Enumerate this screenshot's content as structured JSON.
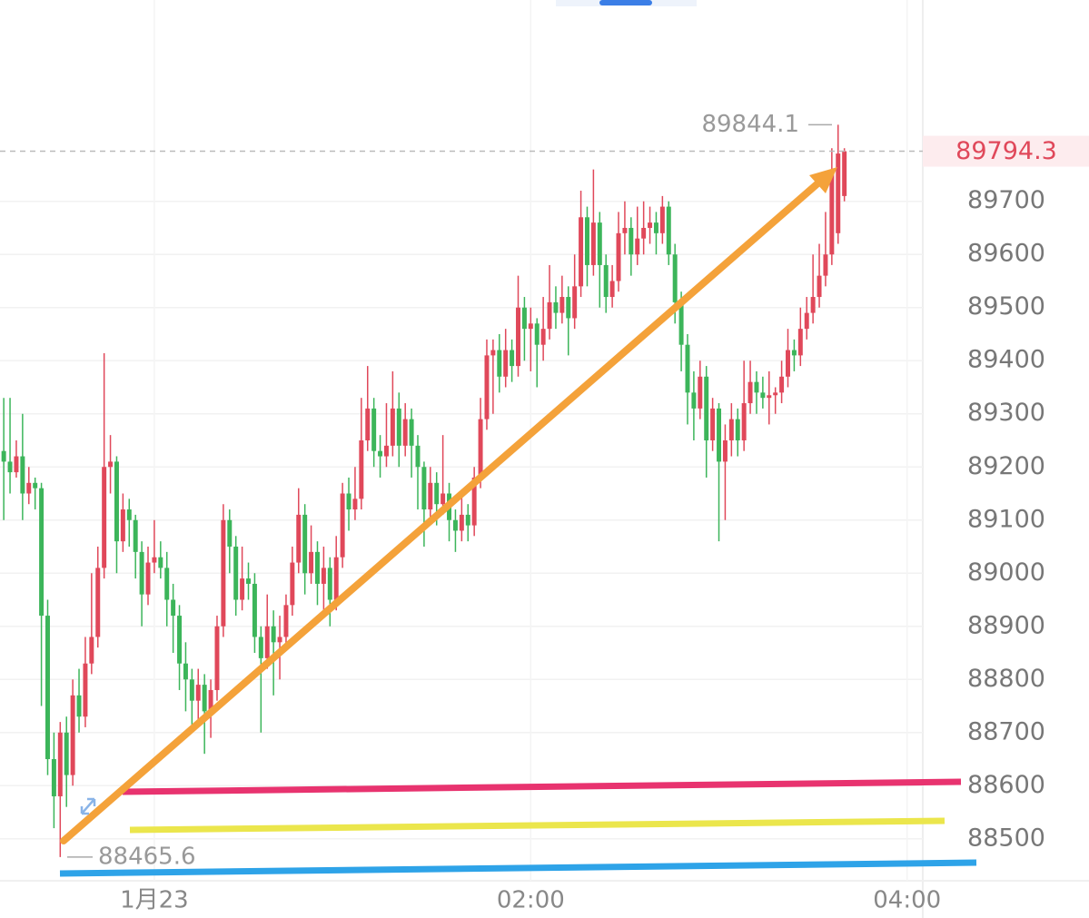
{
  "chart_data": {
    "type": "candlestick",
    "up_color": "#e0485a",
    "down_color": "#3cb55a",
    "xlim": [
      -0.6,
      146.5
    ],
    "xticks": [
      {
        "value": 24,
        "label": "1月23"
      },
      {
        "value": 84,
        "label": "02:00"
      },
      {
        "value": 144,
        "label": "04:00"
      }
    ],
    "ylim": [
      88421,
      90079
    ],
    "yticks": [
      88500,
      88600,
      88700,
      88800,
      88900,
      89000,
      89100,
      89200,
      89300,
      89400,
      89500,
      89600,
      89700
    ],
    "grid": true,
    "high_label": 89844.1,
    "low_label": 88465.6,
    "last_price": 89794.3,
    "candles": [
      [
        89230,
        89330,
        89100,
        89210
      ],
      [
        89210,
        89330,
        89150,
        89190
      ],
      [
        89190,
        89250,
        89180,
        89220
      ],
      [
        89220,
        89300,
        89100,
        89150
      ],
      [
        89150,
        89200,
        89130,
        89170
      ],
      [
        89170,
        89180,
        89120,
        89160
      ],
      [
        89160,
        89170,
        88750,
        88920
      ],
      [
        88920,
        88950,
        88620,
        88650
      ],
      [
        88650,
        88700,
        88520,
        88580
      ],
      [
        88580,
        88720,
        88465.6,
        88700
      ],
      [
        88700,
        88730,
        88560,
        88620
      ],
      [
        88620,
        88800,
        88600,
        88770
      ],
      [
        88770,
        88820,
        88700,
        88730
      ],
      [
        88730,
        88880,
        88710,
        88830
      ],
      [
        88830,
        89000,
        88810,
        88880
      ],
      [
        88880,
        89050,
        88860,
        89010
      ],
      [
        89010,
        89414,
        88990,
        89200
      ],
      [
        89200,
        89260,
        89150,
        89210
      ],
      [
        89210,
        89220,
        89000,
        89060
      ],
      [
        89060,
        89150,
        89040,
        89120
      ],
      [
        89120,
        89140,
        89050,
        89100
      ],
      [
        89100,
        89110,
        88990,
        89040
      ],
      [
        89040,
        89060,
        88900,
        88960
      ],
      [
        88960,
        89050,
        88940,
        89020
      ],
      [
        89020,
        89100,
        89000,
        89030
      ],
      [
        89030,
        89060,
        88990,
        89010
      ],
      [
        89010,
        89040,
        88900,
        88950
      ],
      [
        88950,
        88980,
        88850,
        88920
      ],
      [
        88920,
        88940,
        88780,
        88830
      ],
      [
        88830,
        88870,
        88740,
        88800
      ],
      [
        88800,
        88820,
        88700,
        88760
      ],
      [
        88760,
        88820,
        88720,
        88790
      ],
      [
        88790,
        88810,
        88660,
        88740
      ],
      [
        88740,
        88800,
        88690,
        88780
      ],
      [
        88780,
        88920,
        88760,
        88900
      ],
      [
        88900,
        89130,
        88880,
        89100
      ],
      [
        89100,
        89120,
        89000,
        89050
      ],
      [
        89050,
        89070,
        88920,
        88950
      ],
      [
        88950,
        89050,
        88930,
        88990
      ],
      [
        88990,
        89020,
        88950,
        88980
      ],
      [
        88980,
        89000,
        88850,
        88880
      ],
      [
        88880,
        88900,
        88700,
        88840
      ],
      [
        88840,
        88960,
        88820,
        88900
      ],
      [
        88900,
        88930,
        88770,
        88870
      ],
      [
        88870,
        88920,
        88800,
        88880
      ],
      [
        88880,
        88960,
        88860,
        88940
      ],
      [
        88940,
        89050,
        88920,
        89020
      ],
      [
        89020,
        89160,
        89000,
        89110
      ],
      [
        89110,
        89130,
        88960,
        89000
      ],
      [
        89000,
        89090,
        88980,
        89040
      ],
      [
        89040,
        89060,
        88940,
        88980
      ],
      [
        88980,
        89050,
        88930,
        89010
      ],
      [
        89010,
        89030,
        88900,
        88950
      ],
      [
        88950,
        89070,
        88930,
        89030
      ],
      [
        89030,
        89170,
        89010,
        89150
      ],
      [
        89150,
        89180,
        89080,
        89120
      ],
      [
        89120,
        89200,
        89100,
        89140
      ],
      [
        89140,
        89330,
        89120,
        89250
      ],
      [
        89250,
        89390,
        89230,
        89310
      ],
      [
        89310,
        89330,
        89200,
        89230
      ],
      [
        89230,
        89260,
        89180,
        89220
      ],
      [
        89220,
        89320,
        89200,
        89240
      ],
      [
        89240,
        89380,
        89220,
        89310
      ],
      [
        89310,
        89340,
        89200,
        89240
      ],
      [
        89240,
        89320,
        89220,
        89290
      ],
      [
        89290,
        89310,
        89180,
        89240
      ],
      [
        89240,
        89260,
        89120,
        89200
      ],
      [
        89200,
        89210,
        89050,
        89120
      ],
      [
        89120,
        89200,
        89100,
        89170
      ],
      [
        89170,
        89190,
        89090,
        89130
      ],
      [
        89130,
        89260,
        89110,
        89150
      ],
      [
        89150,
        89170,
        89060,
        89100
      ],
      [
        89100,
        89120,
        89040,
        89080
      ],
      [
        89080,
        89150,
        89060,
        89110
      ],
      [
        89110,
        89130,
        89060,
        89090
      ],
      [
        89090,
        89200,
        89070,
        89180
      ],
      [
        89180,
        89330,
        89160,
        89290
      ],
      [
        89290,
        89440,
        89270,
        89410
      ],
      [
        89410,
        89440,
        89300,
        89420
      ],
      [
        89420,
        89450,
        89340,
        89370
      ],
      [
        89370,
        89460,
        89350,
        89420
      ],
      [
        89420,
        89440,
        89360,
        89390
      ],
      [
        89390,
        89560,
        89370,
        89500
      ],
      [
        89500,
        89520,
        89400,
        89460
      ],
      [
        89460,
        89500,
        89380,
        89470
      ],
      [
        89470,
        89480,
        89350,
        89430
      ],
      [
        89430,
        89520,
        89400,
        89460
      ],
      [
        89460,
        89580,
        89440,
        89510
      ],
      [
        89510,
        89540,
        89460,
        89490
      ],
      [
        89490,
        89560,
        89470,
        89520
      ],
      [
        89520,
        89540,
        89410,
        89480
      ],
      [
        89480,
        89600,
        89460,
        89540
      ],
      [
        89540,
        89720,
        89520,
        89670
      ],
      [
        89670,
        89690,
        89540,
        89580
      ],
      [
        89580,
        89760,
        89560,
        89660
      ],
      [
        89660,
        89680,
        89500,
        89580
      ],
      [
        89580,
        89600,
        89490,
        89520
      ],
      [
        89520,
        89580,
        89500,
        89550
      ],
      [
        89550,
        89680,
        89530,
        89640
      ],
      [
        89640,
        89700,
        89600,
        89650
      ],
      [
        89650,
        89670,
        89560,
        89600
      ],
      [
        89600,
        89690,
        89580,
        89630
      ],
      [
        89630,
        89700,
        89600,
        89650
      ],
      [
        89650,
        89690,
        89620,
        89660
      ],
      [
        89660,
        89680,
        89600,
        89640
      ],
      [
        89640,
        89710,
        89620,
        89690
      ],
      [
        89690,
        89700,
        89580,
        89600
      ],
      [
        89600,
        89620,
        89470,
        89510
      ],
      [
        89510,
        89530,
        89380,
        89430
      ],
      [
        89430,
        89450,
        89280,
        89340
      ],
      [
        89340,
        89380,
        89250,
        89310
      ],
      [
        89310,
        89400,
        89290,
        89370
      ],
      [
        89370,
        89390,
        89180,
        89250
      ],
      [
        89250,
        89330,
        89230,
        89310
      ],
      [
        89310,
        89320,
        89060,
        89210
      ],
      [
        89210,
        89280,
        89100,
        89250
      ],
      [
        89250,
        89320,
        89220,
        89290
      ],
      [
        89290,
        89310,
        89220,
        89250
      ],
      [
        89250,
        89400,
        89230,
        89320
      ],
      [
        89320,
        89400,
        89300,
        89360
      ],
      [
        89360,
        89380,
        89300,
        89340
      ],
      [
        89340,
        89370,
        89310,
        89330
      ],
      [
        89330,
        89380,
        89280,
        89335
      ],
      [
        89335,
        89350,
        89300,
        89340
      ],
      [
        89340,
        89400,
        89320,
        89370
      ],
      [
        89370,
        89460,
        89350,
        89420
      ],
      [
        89420,
        89440,
        89380,
        89410
      ],
      [
        89410,
        89500,
        89390,
        89460
      ],
      [
        89460,
        89520,
        89440,
        89490
      ],
      [
        89490,
        89600,
        89470,
        89520
      ],
      [
        89520,
        89620,
        89500,
        89560
      ],
      [
        89560,
        89680,
        89540,
        89600
      ],
      [
        89600,
        89800,
        89580,
        89760
      ],
      [
        89640,
        89844.1,
        89620,
        89790
      ],
      [
        89710,
        89800,
        89700,
        89794.3
      ]
    ]
  }
}
